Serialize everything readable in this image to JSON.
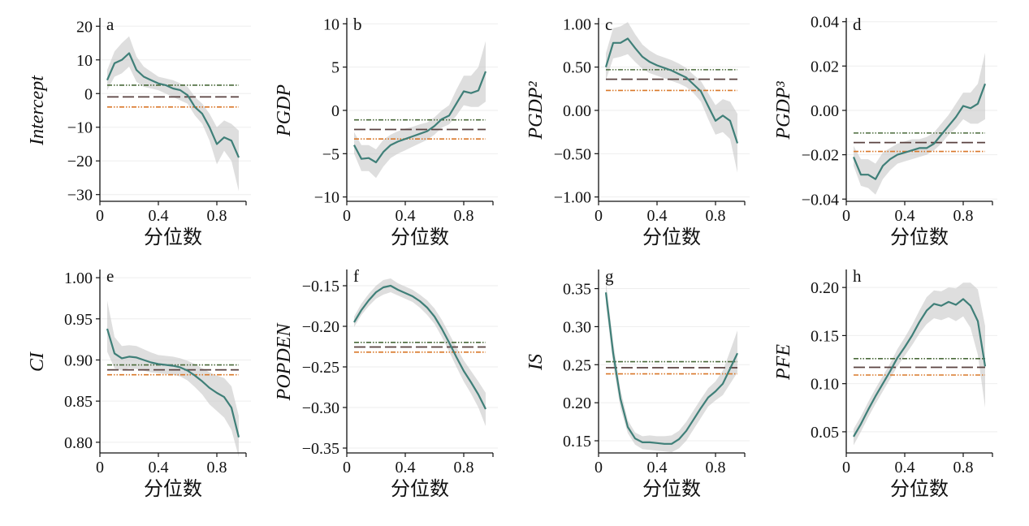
{
  "colors": {
    "qr_line": "#3f7f78",
    "band": "#c8c8c8",
    "ols_estimate": "#5a4240",
    "ci_upper": "#4a6a3a",
    "ci_lower": "#d9782a",
    "gridline": "#eeeeee",
    "axis": "#111111"
  },
  "chart_data": [
    {
      "type": "line",
      "panel": "a",
      "ylabel": "Intercept",
      "xlabel": "分位数",
      "xlim": [
        0,
        1
      ],
      "ylim": [
        -32,
        22
      ],
      "xticks": [
        0,
        0.4,
        0.8
      ],
      "xtick_labels": [
        "0",
        "0.4",
        "0.8"
      ],
      "yticks": [
        20,
        10,
        0,
        -10,
        -20,
        -30
      ],
      "ytick_labels": [
        "20",
        "10",
        "0",
        "−10",
        "−20",
        "−30"
      ],
      "x": [
        0.05,
        0.1,
        0.15,
        0.2,
        0.25,
        0.3,
        0.35,
        0.4,
        0.45,
        0.5,
        0.55,
        0.6,
        0.65,
        0.7,
        0.75,
        0.8,
        0.85,
        0.9,
        0.95
      ],
      "y": [
        4,
        9,
        10,
        12,
        7,
        5,
        4,
        3,
        2.5,
        1.5,
        1,
        -0.5,
        -4,
        -6,
        -10,
        -15,
        -13,
        -14,
        -19
      ],
      "lower": [
        1,
        5,
        6,
        8,
        3.5,
        2,
        1.5,
        1,
        0,
        -1,
        -2,
        -3,
        -6.5,
        -9,
        -14,
        -21,
        -17,
        -20,
        -29
      ],
      "upper": [
        7,
        12.5,
        15,
        17,
        11,
        8,
        6.5,
        5,
        4.5,
        4,
        3,
        2,
        -1,
        -3,
        -6,
        -10,
        -8,
        -9,
        -11
      ],
      "ols": -1.0,
      "ols_ci_upper": 2.5,
      "ols_ci_lower": -4.0
    },
    {
      "type": "line",
      "panel": "b",
      "ylabel": "PGDP",
      "xlabel": "分位数",
      "xlim": [
        0,
        1
      ],
      "ylim": [
        -10.5,
        10.5
      ],
      "xticks": [
        0,
        0.4,
        0.8
      ],
      "xtick_labels": [
        "0",
        "0.4",
        "0.8"
      ],
      "yticks": [
        10,
        5,
        0,
        -5,
        -10
      ],
      "ytick_labels": [
        "10",
        "5",
        "0",
        "−5",
        "−10"
      ],
      "x": [
        0.05,
        0.1,
        0.15,
        0.2,
        0.25,
        0.3,
        0.35,
        0.4,
        0.45,
        0.5,
        0.55,
        0.6,
        0.65,
        0.7,
        0.75,
        0.8,
        0.85,
        0.9,
        0.95
      ],
      "y": [
        -4,
        -5.6,
        -5.5,
        -6.0,
        -4.8,
        -4.0,
        -3.6,
        -3.3,
        -3.0,
        -2.7,
        -2.4,
        -1.8,
        -1.0,
        -0.6,
        0.8,
        2.2,
        2.0,
        2.3,
        4.5
      ],
      "lower": [
        -5,
        -7,
        -7,
        -7.8,
        -6.5,
        -5.5,
        -5,
        -4.6,
        -4.2,
        -3.8,
        -3.4,
        -2.8,
        -2,
        -1.6,
        -0.6,
        0.6,
        0.4,
        0.4,
        1
      ],
      "upper": [
        -2.5,
        -4,
        -4,
        -4.5,
        -3.4,
        -2.8,
        -2.4,
        -2.1,
        -1.9,
        -1.6,
        -1.4,
        -0.8,
        0,
        0.6,
        2.4,
        4,
        4,
        5,
        8
      ],
      "ols": -2.2,
      "ols_ci_upper": -1.1,
      "ols_ci_lower": -3.3
    },
    {
      "type": "line",
      "panel": "c",
      "ylabel": "PGDP²",
      "xlabel": "分位数",
      "xlim": [
        0,
        1
      ],
      "ylim": [
        -1.05,
        1.05
      ],
      "xticks": [
        0,
        0.4,
        0.8
      ],
      "xtick_labels": [
        "0",
        "0.4",
        "0.8"
      ],
      "yticks": [
        1.0,
        0.5,
        0.0,
        -0.5,
        -1.0
      ],
      "ytick_labels": [
        "1.00",
        "0.50",
        "0.00",
        "−0.50",
        "−1.00"
      ],
      "x": [
        0.05,
        0.1,
        0.15,
        0.2,
        0.25,
        0.3,
        0.35,
        0.4,
        0.45,
        0.5,
        0.55,
        0.6,
        0.65,
        0.7,
        0.75,
        0.8,
        0.85,
        0.9,
        0.95
      ],
      "y": [
        0.5,
        0.78,
        0.78,
        0.83,
        0.72,
        0.62,
        0.56,
        0.52,
        0.49,
        0.46,
        0.42,
        0.38,
        0.3,
        0.22,
        0.05,
        -0.12,
        -0.06,
        -0.12,
        -0.38
      ],
      "lower": [
        0.35,
        0.6,
        0.62,
        0.65,
        0.56,
        0.48,
        0.43,
        0.4,
        0.37,
        0.34,
        0.31,
        0.27,
        0.2,
        0.1,
        -0.1,
        -0.28,
        -0.25,
        -0.33,
        -0.72
      ],
      "upper": [
        0.66,
        0.95,
        0.97,
        1.02,
        0.88,
        0.76,
        0.69,
        0.64,
        0.61,
        0.58,
        0.54,
        0.49,
        0.41,
        0.34,
        0.2,
        0.06,
        0.13,
        0.1,
        -0.04
      ],
      "ols": 0.36,
      "ols_ci_upper": 0.47,
      "ols_ci_lower": 0.23
    },
    {
      "type": "line",
      "panel": "d",
      "ylabel": "PGDP³",
      "xlabel": "分位数",
      "xlim": [
        0,
        1
      ],
      "ylim": [
        -0.041,
        0.041
      ],
      "xticks": [
        0,
        0.4,
        0.8
      ],
      "xtick_labels": [
        "0",
        "0.4",
        "0.8"
      ],
      "yticks": [
        0.04,
        0.02,
        0.0,
        -0.02,
        -0.04
      ],
      "ytick_labels": [
        "0.04",
        "0.02",
        "0.00",
        "−0.02",
        "−0.04"
      ],
      "x": [
        0.05,
        0.1,
        0.15,
        0.2,
        0.25,
        0.3,
        0.35,
        0.4,
        0.45,
        0.5,
        0.55,
        0.6,
        0.65,
        0.7,
        0.75,
        0.8,
        0.85,
        0.9,
        0.95
      ],
      "y": [
        -0.021,
        -0.029,
        -0.029,
        -0.031,
        -0.025,
        -0.022,
        -0.02,
        -0.019,
        -0.018,
        -0.017,
        -0.017,
        -0.015,
        -0.011,
        -0.007,
        -0.003,
        0.002,
        0.001,
        0.003,
        0.012
      ],
      "lower": [
        -0.025,
        -0.034,
        -0.035,
        -0.038,
        -0.031,
        -0.027,
        -0.024,
        -0.023,
        -0.022,
        -0.021,
        -0.02,
        -0.018,
        -0.015,
        -0.011,
        -0.008,
        -0.004,
        -0.006,
        -0.006,
        -0.004
      ],
      "upper": [
        -0.016,
        -0.022,
        -0.022,
        -0.024,
        -0.019,
        -0.017,
        -0.015,
        -0.014,
        -0.013,
        -0.013,
        -0.012,
        -0.01,
        -0.006,
        -0.002,
        0.003,
        0.008,
        0.008,
        0.012,
        0.026
      ],
      "ols": -0.0145,
      "ols_ci_upper": -0.0102,
      "ols_ci_lower": -0.0185
    },
    {
      "type": "line",
      "panel": "e",
      "ylabel": "CI",
      "xlabel": "分位数",
      "xlim": [
        0,
        1
      ],
      "ylim": [
        0.787,
        1.008
      ],
      "xticks": [
        0,
        0.4,
        0.8
      ],
      "xtick_labels": [
        "0",
        "0.4",
        "0.8"
      ],
      "yticks": [
        1.0,
        0.95,
        0.9,
        0.85,
        0.8
      ],
      "ytick_labels": [
        "1.00",
        "0.95",
        "0.90",
        "0.85",
        "0.80"
      ],
      "x": [
        0.05,
        0.1,
        0.15,
        0.2,
        0.25,
        0.3,
        0.35,
        0.4,
        0.45,
        0.5,
        0.55,
        0.6,
        0.65,
        0.7,
        0.75,
        0.8,
        0.85,
        0.9,
        0.95
      ],
      "y": [
        0.938,
        0.908,
        0.902,
        0.904,
        0.903,
        0.9,
        0.897,
        0.895,
        0.894,
        0.893,
        0.891,
        0.887,
        0.881,
        0.874,
        0.866,
        0.86,
        0.855,
        0.842,
        0.806
      ],
      "lower": [
        0.91,
        0.89,
        0.887,
        0.89,
        0.889,
        0.887,
        0.885,
        0.884,
        0.883,
        0.882,
        0.88,
        0.875,
        0.867,
        0.858,
        0.846,
        0.838,
        0.83,
        0.815,
        0.782
      ],
      "upper": [
        0.972,
        0.928,
        0.917,
        0.918,
        0.917,
        0.913,
        0.909,
        0.906,
        0.905,
        0.904,
        0.902,
        0.899,
        0.895,
        0.89,
        0.885,
        0.881,
        0.878,
        0.868,
        0.832
      ],
      "ols": 0.888,
      "ols_ci_upper": 0.894,
      "ols_ci_lower": 0.882
    },
    {
      "type": "line",
      "panel": "f",
      "ylabel": "POPDEN",
      "xlabel": "分位数",
      "xlim": [
        0,
        1
      ],
      "ylim": [
        -0.356,
        -0.132
      ],
      "xticks": [
        0,
        0.4,
        0.8
      ],
      "xtick_labels": [
        "0",
        "0.4",
        "0.8"
      ],
      "yticks": [
        -0.15,
        -0.2,
        -0.25,
        -0.3,
        -0.35
      ],
      "ytick_labels": [
        "−0.15",
        "−0.20",
        "−0.25",
        "−0.30",
        "−0.35"
      ],
      "x": [
        0.05,
        0.1,
        0.15,
        0.2,
        0.25,
        0.3,
        0.35,
        0.4,
        0.45,
        0.5,
        0.55,
        0.6,
        0.65,
        0.7,
        0.75,
        0.8,
        0.85,
        0.9,
        0.95
      ],
      "y": [
        -0.195,
        -0.18,
        -0.168,
        -0.158,
        -0.152,
        -0.15,
        -0.155,
        -0.159,
        -0.163,
        -0.169,
        -0.177,
        -0.188,
        -0.203,
        -0.22,
        -0.238,
        -0.255,
        -0.269,
        -0.284,
        -0.302
      ],
      "lower": [
        -0.201,
        -0.186,
        -0.175,
        -0.166,
        -0.161,
        -0.158,
        -0.162,
        -0.166,
        -0.17,
        -0.177,
        -0.186,
        -0.197,
        -0.213,
        -0.231,
        -0.25,
        -0.268,
        -0.283,
        -0.3,
        -0.323
      ],
      "upper": [
        -0.188,
        -0.172,
        -0.16,
        -0.15,
        -0.143,
        -0.141,
        -0.147,
        -0.151,
        -0.155,
        -0.161,
        -0.168,
        -0.178,
        -0.192,
        -0.209,
        -0.226,
        -0.242,
        -0.255,
        -0.268,
        -0.282
      ],
      "ols": -0.2255,
      "ols_ci_upper": -0.2198,
      "ols_ci_lower": -0.2318
    },
    {
      "type": "line",
      "panel": "g",
      "ylabel": "IS",
      "xlabel": "分位数",
      "xlim": [
        0,
        1
      ],
      "ylim": [
        0.134,
        0.373
      ],
      "xticks": [
        0,
        0.4,
        0.8
      ],
      "xtick_labels": [
        "0",
        "0.4",
        "0.8"
      ],
      "yticks": [
        0.35,
        0.3,
        0.25,
        0.2,
        0.15
      ],
      "ytick_labels": [
        "0.35",
        "0.30",
        "0.25",
        "0.20",
        "0.15"
      ],
      "x": [
        0.05,
        0.1,
        0.15,
        0.2,
        0.25,
        0.3,
        0.35,
        0.4,
        0.45,
        0.5,
        0.55,
        0.6,
        0.65,
        0.7,
        0.75,
        0.8,
        0.85,
        0.9,
        0.95
      ],
      "y": [
        0.345,
        0.265,
        0.205,
        0.168,
        0.153,
        0.148,
        0.148,
        0.147,
        0.146,
        0.146,
        0.152,
        0.163,
        0.178,
        0.193,
        0.207,
        0.215,
        0.225,
        0.245,
        0.265
      ],
      "lower": [
        0.33,
        0.25,
        0.193,
        0.16,
        0.145,
        0.139,
        0.138,
        0.137,
        0.136,
        0.135,
        0.14,
        0.15,
        0.165,
        0.18,
        0.195,
        0.203,
        0.21,
        0.225,
        0.24
      ],
      "upper": [
        0.36,
        0.28,
        0.217,
        0.177,
        0.161,
        0.156,
        0.157,
        0.156,
        0.156,
        0.157,
        0.163,
        0.175,
        0.19,
        0.205,
        0.219,
        0.228,
        0.242,
        0.268,
        0.295
      ],
      "ols": 0.246,
      "ols_ci_upper": 0.254,
      "ols_ci_lower": 0.238
    },
    {
      "type": "line",
      "panel": "h",
      "ylabel": "PFE",
      "xlabel": "分位数",
      "xlim": [
        0,
        1
      ],
      "ylim": [
        0.028,
        0.217
      ],
      "xticks": [
        0,
        0.4,
        0.8
      ],
      "xtick_labels": [
        "0",
        "0.4",
        "0.8"
      ],
      "yticks": [
        0.2,
        0.15,
        0.1,
        0.05
      ],
      "ytick_labels": [
        "0.20",
        "0.15",
        "0.10",
        "0.05"
      ],
      "x": [
        0.05,
        0.1,
        0.15,
        0.2,
        0.25,
        0.3,
        0.35,
        0.4,
        0.45,
        0.5,
        0.55,
        0.6,
        0.65,
        0.7,
        0.75,
        0.8,
        0.85,
        0.9,
        0.95
      ],
      "y": [
        0.045,
        0.058,
        0.073,
        0.087,
        0.1,
        0.113,
        0.127,
        0.138,
        0.15,
        0.164,
        0.176,
        0.183,
        0.181,
        0.185,
        0.182,
        0.188,
        0.181,
        0.165,
        0.118
      ],
      "lower": [
        0.036,
        0.05,
        0.065,
        0.079,
        0.092,
        0.105,
        0.118,
        0.129,
        0.14,
        0.152,
        0.162,
        0.168,
        0.166,
        0.169,
        0.165,
        0.17,
        0.158,
        0.13,
        0.075
      ],
      "upper": [
        0.053,
        0.066,
        0.081,
        0.095,
        0.108,
        0.121,
        0.136,
        0.148,
        0.161,
        0.176,
        0.19,
        0.197,
        0.196,
        0.2,
        0.199,
        0.205,
        0.205,
        0.198,
        0.16
      ],
      "ols": 0.117,
      "ols_ci_upper": 0.126,
      "ols_ci_lower": 0.109
    }
  ]
}
